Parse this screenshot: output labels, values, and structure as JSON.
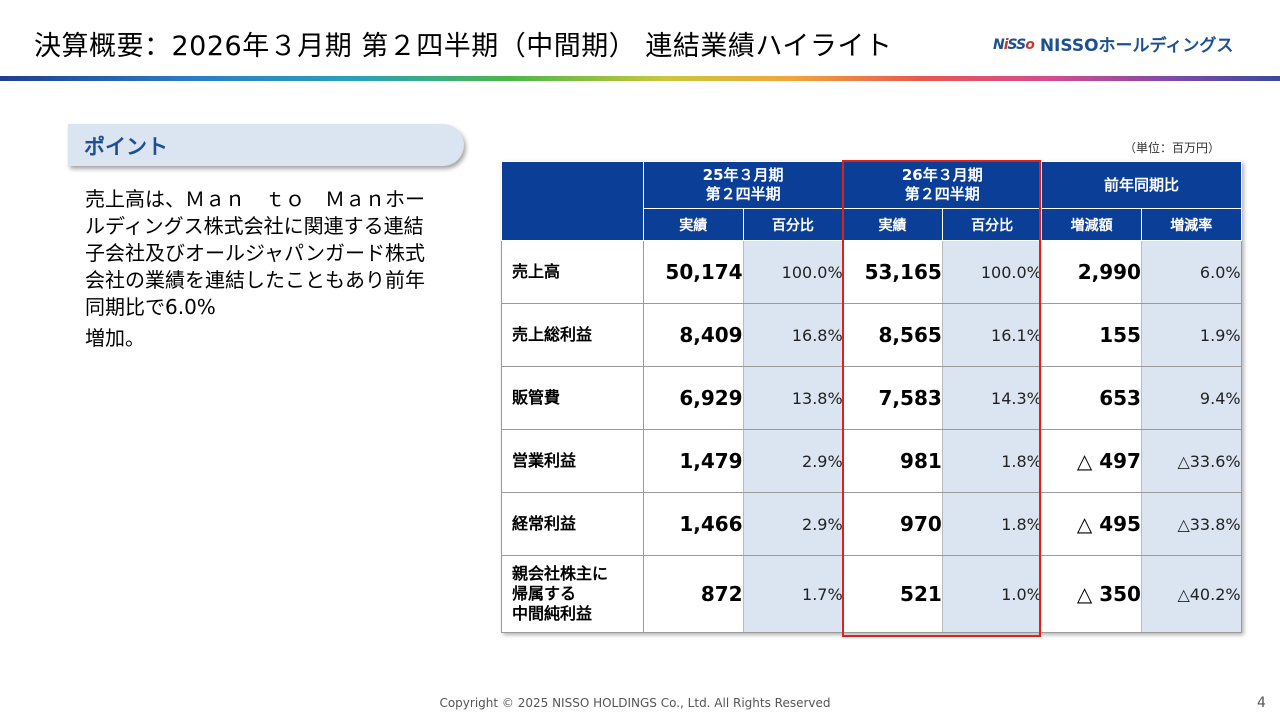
{
  "slide": {
    "title": "決算概要：2026年３月期 第２四半期（中間期） 連結業績ハイライト",
    "logo_mark": "NiSSo",
    "logo_text": "NISSOホールディングス",
    "page_number": "4",
    "copyright": "Copyright © 2025 NISSO HOLDINGS Co., Ltd. All Rights Reserved"
  },
  "point": {
    "label": "ポイント",
    "text_line1": "売上高は、Ｍａｎ　ｔｏ　Ｍａｎホールディングス株式会社に関連する連結子会社及びオールジャパンガード株式会社の業績を連結したこともあり前年同期比で6.0%",
    "text_line2": "増加。"
  },
  "table": {
    "unit": "（単位：百万円）",
    "group_headers": [
      "25年３月期\n第２四半期",
      "26年３月期\n第２四半期",
      "前年同期比"
    ],
    "group1": {
      "line1": "25年３月期",
      "line2": "第２四半期"
    },
    "group2": {
      "line1": "26年３月期",
      "line2": "第２四半期"
    },
    "group3": {
      "line1": "前年同期比"
    },
    "sub_headers": [
      "実績",
      "百分比",
      "実績",
      "百分比",
      "増減額",
      "増減率"
    ],
    "rows": [
      {
        "label": "売上高",
        "cells": [
          "50,174",
          "100.0%",
          "53,165",
          "100.0%",
          "2,990",
          "6.0%"
        ]
      },
      {
        "label": "売上総利益",
        "cells": [
          "8,409",
          "16.8%",
          "8,565",
          "16.1%",
          "155",
          "1.9%"
        ]
      },
      {
        "label": "販管費",
        "cells": [
          "6,929",
          "13.8%",
          "7,583",
          "14.3%",
          "653",
          "9.4%"
        ]
      },
      {
        "label": "営業利益",
        "cells": [
          "1,479",
          "2.9%",
          "981",
          "1.8%",
          "△ 497",
          "△33.6%"
        ]
      },
      {
        "label": "経常利益",
        "cells": [
          "1,466",
          "2.9%",
          "970",
          "1.8%",
          "△ 495",
          "△33.8%"
        ]
      },
      {
        "label_lines": [
          "親会社株主に",
          "帰属する",
          "中間純利益"
        ],
        "cells": [
          "872",
          "1.7%",
          "521",
          "1.0%",
          "△ 350",
          "△40.2%"
        ]
      }
    ]
  },
  "colors": {
    "header_blue": "#0b3f97",
    "percent_cell_bg": "#dbe5f1",
    "highlight_box": "#e0201b",
    "brand": "#1d4f91"
  }
}
